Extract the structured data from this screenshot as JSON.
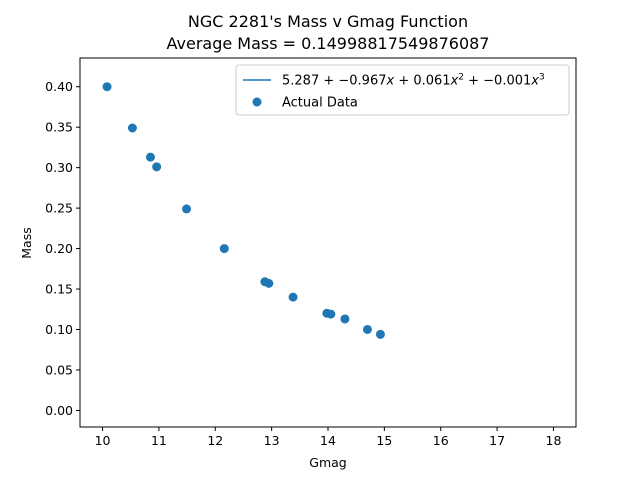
{
  "chart_data": {
    "type": "scatter",
    "title": "NGC 2281's Mass v Gmag Function",
    "subtitle": "Average Mass = 0.14998817549876087",
    "xlabel": "Gmag",
    "ylabel": "Mass",
    "xlim": [
      9.6,
      18.4
    ],
    "ylim": [
      -0.0205,
      0.4355
    ],
    "xticks": [
      10,
      11,
      12,
      13,
      14,
      15,
      16,
      17,
      18
    ],
    "yticks": [
      0.0,
      0.05,
      0.1,
      0.15,
      0.2,
      0.25,
      0.3,
      0.35,
      0.4
    ],
    "xtick_labels": [
      "10",
      "11",
      "12",
      "13",
      "14",
      "15",
      "16",
      "17",
      "18"
    ],
    "ytick_labels": [
      "0.00",
      "0.05",
      "0.10",
      "0.15",
      "0.20",
      "0.25",
      "0.30",
      "0.35",
      "0.40"
    ],
    "grid": false,
    "legend_position": "top-right",
    "colors": {
      "series": "#1f77b4"
    },
    "series": [
      {
        "name": "5.287 + −0.967x + 0.061x^2 + −0.001x^3",
        "type": "line",
        "coefficients": [
          5.287,
          -0.967,
          0.061,
          -0.001
        ],
        "x_range": [
          10,
          18
        ]
      },
      {
        "name": "Actual Data",
        "type": "scatter",
        "points": [
          [
            10.08,
            0.4
          ],
          [
            10.53,
            0.349
          ],
          [
            10.85,
            0.313
          ],
          [
            10.96,
            0.301
          ],
          [
            11.49,
            0.249
          ],
          [
            12.16,
            0.2
          ],
          [
            12.88,
            0.159
          ],
          [
            12.95,
            0.157
          ],
          [
            13.38,
            0.14
          ],
          [
            13.98,
            0.12
          ],
          [
            14.05,
            0.119
          ],
          [
            14.3,
            0.113
          ],
          [
            14.7,
            0.1
          ],
          [
            14.93,
            0.094
          ]
        ]
      }
    ]
  },
  "legend": {
    "line_label_parts": [
      "5.287 + −0.967",
      "x",
      " + 0.061",
      "x",
      "2",
      " + −0.001",
      "x",
      "3"
    ],
    "scatter_label": "Actual Data"
  }
}
